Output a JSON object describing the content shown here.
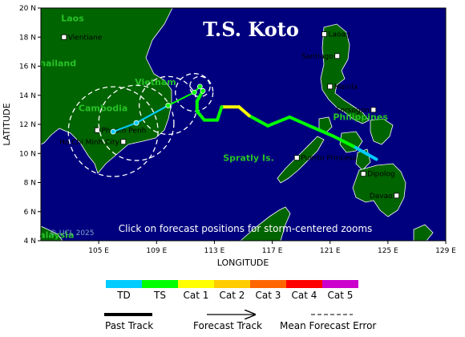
{
  "map": {
    "title": "T.S. Koto",
    "instruction": "Click on forecast positions for storm-centered zooms",
    "copyright": "© UCL 2025",
    "xlabel": "LONGITUDE",
    "ylabel": "LATITUDE",
    "lon_ticks": [
      "105 E",
      "109 E",
      "113 E",
      "117 E",
      "121 E",
      "125 E",
      "129 E"
    ],
    "lat_ticks": [
      "20 N",
      "18 N",
      "16 N",
      "14 N",
      "12 N",
      "10 N",
      "8 N",
      "6 N",
      "4 N"
    ],
    "lon_range": [
      101,
      129
    ],
    "lat_range": [
      4,
      20
    ],
    "colors": {
      "sea": "#00007f",
      "land": "#006400",
      "outline": "#ffffff"
    }
  },
  "countries": [
    {
      "label": "Laos",
      "lon": 102.4,
      "lat": 19.1
    },
    {
      "label": "hailand",
      "lon": 100.9,
      "lat": 16.0
    },
    {
      "label": "Vietnam",
      "lon": 107.5,
      "lat": 14.7
    },
    {
      "label": "Cambodia",
      "lon": 103.6,
      "lat": 12.9
    },
    {
      "label": "Spratly Is.",
      "lon": 113.6,
      "lat": 9.5
    },
    {
      "label": "Philippines",
      "lon": 121.2,
      "lat": 12.3
    },
    {
      "label": "alaysia",
      "lon": 100.9,
      "lat": 4.2
    }
  ],
  "cities": [
    {
      "label": "Vientiane",
      "lon": 102.6,
      "lat": 18.0,
      "anchor": "right"
    },
    {
      "label": "Laoag",
      "lon": 120.6,
      "lat": 18.2,
      "anchor": "right"
    },
    {
      "label": "Santiago",
      "lon": 121.5,
      "lat": 16.7,
      "anchor": "left"
    },
    {
      "label": "Manila",
      "lon": 121.0,
      "lat": 14.6,
      "anchor": "right"
    },
    {
      "label": "Sorsogon",
      "lon": 124.0,
      "lat": 13.0,
      "anchor": "left"
    },
    {
      "label": "Phnom Penh",
      "lon": 104.9,
      "lat": 11.6,
      "anchor": "right"
    },
    {
      "label": "Ho Chi Minh City",
      "lon": 106.7,
      "lat": 10.8,
      "anchor": "left"
    },
    {
      "label": "Puerto Princesa",
      "lon": 118.7,
      "lat": 9.7,
      "anchor": "right"
    },
    {
      "label": "Dipolog",
      "lon": 123.3,
      "lat": 8.6,
      "anchor": "right"
    },
    {
      "label": "Davao",
      "lon": 125.6,
      "lat": 7.1,
      "anchor": "left"
    }
  ],
  "track": {
    "past": [
      {
        "lon": 124.2,
        "lat": 9.6,
        "cat": "TD"
      },
      {
        "lon": 122.6,
        "lat": 10.5,
        "cat": "TD"
      },
      {
        "lon": 121.2,
        "lat": 11.2,
        "cat": "TS"
      },
      {
        "lon": 119.8,
        "lat": 11.8,
        "cat": "TS"
      },
      {
        "lon": 118.2,
        "lat": 12.5,
        "cat": "TS"
      },
      {
        "lon": 116.7,
        "lat": 11.9,
        "cat": "TS"
      },
      {
        "lon": 115.4,
        "lat": 12.6,
        "cat": "TS"
      },
      {
        "lon": 114.7,
        "lat": 13.2,
        "cat": "Cat 1"
      },
      {
        "lon": 113.5,
        "lat": 13.2,
        "cat": "Cat 1"
      },
      {
        "lon": 113.2,
        "lat": 12.3,
        "cat": "TS"
      },
      {
        "lon": 112.3,
        "lat": 12.3,
        "cat": "TS"
      },
      {
        "lon": 111.8,
        "lat": 12.9,
        "cat": "TS"
      },
      {
        "lon": 111.8,
        "lat": 13.6,
        "cat": "TS"
      },
      {
        "lon": 112.2,
        "lat": 14.3,
        "cat": "TS"
      }
    ],
    "forecast": [
      {
        "lon": 112.2,
        "lat": 14.3,
        "cat": "TS",
        "error_deg": 0.2
      },
      {
        "lon": 112.0,
        "lat": 14.6,
        "cat": "TS",
        "error_deg": 0.7
      },
      {
        "lon": 111.6,
        "lat": 14.2,
        "cat": "TS",
        "error_deg": 1.3
      },
      {
        "lon": 109.8,
        "lat": 13.3,
        "cat": "TS",
        "error_deg": 2.0
      },
      {
        "lon": 107.6,
        "lat": 12.1,
        "cat": "TD",
        "error_deg": 2.6
      },
      {
        "lon": 106.0,
        "lat": 11.5,
        "cat": "TD",
        "error_deg": 3.1
      }
    ]
  },
  "legend": {
    "categories": [
      {
        "label": "TD",
        "color": "#00ccff"
      },
      {
        "label": "TS",
        "color": "#00ff00"
      },
      {
        "label": "Cat 1",
        "color": "#ffff00"
      },
      {
        "label": "Cat 2",
        "color": "#ffcc00"
      },
      {
        "label": "Cat 3",
        "color": "#ff6600"
      },
      {
        "label": "Cat 4",
        "color": "#ff0000"
      },
      {
        "label": "Cat 5",
        "color": "#cc00cc"
      }
    ],
    "past_track_label": "Past Track",
    "forecast_track_label": "Forecast Track",
    "error_label": "Mean Forecast Error"
  }
}
